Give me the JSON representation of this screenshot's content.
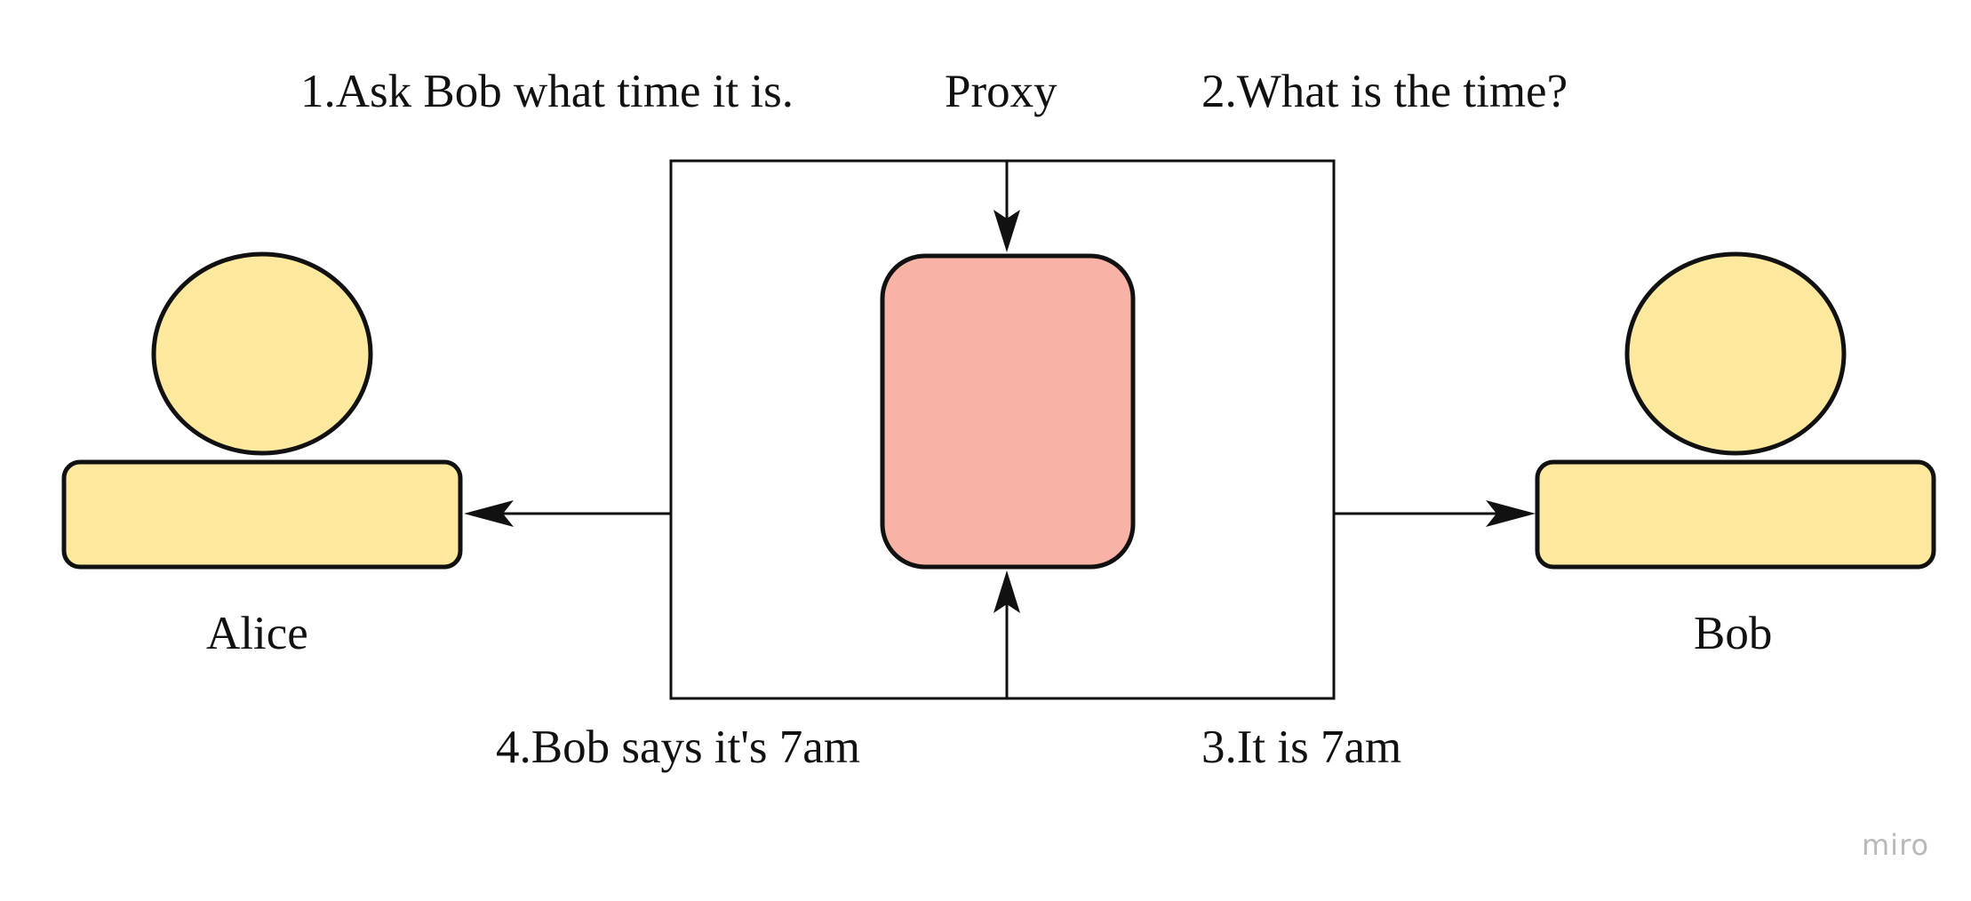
{
  "diagram": {
    "nodes": {
      "alice": {
        "label": "Alice"
      },
      "proxy": {
        "label": "Proxy"
      },
      "bob": {
        "label": "Bob"
      }
    },
    "steps": [
      {
        "label": "1.Ask Bob what time it is."
      },
      {
        "label": "2.What is the time?"
      },
      {
        "label": "3.It is 7am"
      },
      {
        "label": "4.Bob says it's 7am"
      }
    ]
  },
  "watermark": "miro",
  "colors": {
    "person_fill": "#fde99e",
    "proxy_fill": "#f8b3a6",
    "stroke": "#111111",
    "watermark": "#b9b9b9"
  },
  "icons": {
    "alice": "person-icon",
    "bob": "person-icon"
  }
}
